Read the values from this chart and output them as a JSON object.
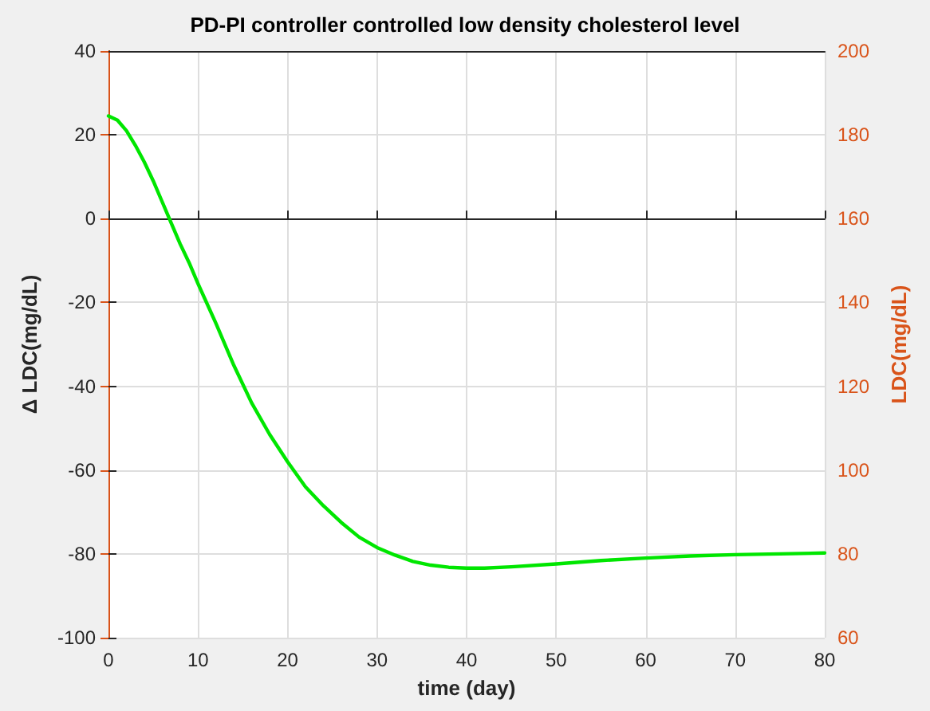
{
  "chart_data": {
    "type": "line",
    "title": "PD-PI controller controlled low density cholesterol level",
    "xlabel": "time (day)",
    "ylabel": "Δ LDC(mg/dL)",
    "y2label": "LDC(mg/dL)",
    "x": [
      0,
      1,
      2,
      3,
      4,
      5,
      6,
      7,
      8,
      9,
      10,
      12,
      14,
      16,
      18,
      20,
      22,
      24,
      26,
      28,
      30,
      32,
      34,
      36,
      38,
      40,
      42,
      45,
      50,
      55,
      60,
      65,
      70,
      75,
      80
    ],
    "series": [
      {
        "color": "#00e600",
        "values": [
          24.5,
          23.5,
          21,
          17.5,
          13.5,
          9,
          4,
          -1,
          -6,
          -10.5,
          -15.5,
          -25,
          -35,
          -44,
          -51.5,
          -58,
          -64,
          -68.5,
          -72.5,
          -76,
          -78.5,
          -80.3,
          -81.8,
          -82.7,
          -83.2,
          -83.4,
          -83.4,
          -83.1,
          -82.4,
          -81.6,
          -81,
          -80.5,
          -80.2,
          -80,
          -79.8
        ]
      }
    ],
    "xlim": [
      0,
      80
    ],
    "xticks": [
      0,
      10,
      20,
      30,
      40,
      50,
      60,
      70,
      80
    ],
    "ylim": [
      -100,
      40
    ],
    "yticks": [
      -100,
      -80,
      -60,
      -40,
      -20,
      0,
      20,
      40
    ],
    "y2lim": [
      60,
      200
    ],
    "y2ticks": [
      60,
      80,
      100,
      120,
      140,
      160,
      180,
      200
    ],
    "grid": true,
    "marker": "none"
  }
}
